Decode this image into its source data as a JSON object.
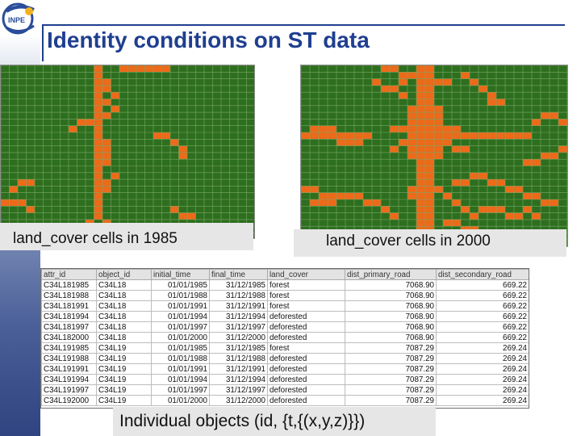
{
  "slide": {
    "title": "Identity conditions on ST data",
    "logo_text": "INPE",
    "caption_1985": "land_cover cells in 1985",
    "caption_2000": "land_cover cells in 2000",
    "caption_objects": "Individual objects (id, {t,{(x,y,z)}})"
  },
  "colors": {
    "forest": "#2e6e1f",
    "deforested": "#ec6a19",
    "title": "#1f3f8f"
  },
  "table": {
    "columns": [
      "attr_id",
      "object_id",
      "initial_time",
      "final_time",
      "land_cover",
      "dist_primary_road",
      "dist_secondary_road"
    ],
    "rows": [
      [
        "C34L181985",
        "C34L18",
        "01/01/1985",
        "31/12/1985",
        "forest",
        "7068.90",
        "669.22"
      ],
      [
        "C34L181988",
        "C34L18",
        "01/01/1988",
        "31/12/1988",
        "forest",
        "7068.90",
        "669.22"
      ],
      [
        "C34L181991",
        "C34L18",
        "01/01/1991",
        "31/12/1991",
        "forest",
        "7068.90",
        "669.22"
      ],
      [
        "C34L181994",
        "C34L18",
        "01/01/1994",
        "31/12/1994",
        "deforested",
        "7068.90",
        "669.22"
      ],
      [
        "C34L181997",
        "C34L18",
        "01/01/1997",
        "31/12/1997",
        "deforested",
        "7068.90",
        "669.22"
      ],
      [
        "C34L182000",
        "C34L18",
        "01/01/2000",
        "31/12/2000",
        "deforested",
        "7068.90",
        "669.22"
      ],
      [
        "C34L191985",
        "C34L19",
        "01/01/1985",
        "31/12/1985",
        "forest",
        "7087.29",
        "269.24"
      ],
      [
        "C34L191988",
        "C34L19",
        "01/01/1988",
        "31/12/1988",
        "deforested",
        "7087.29",
        "269.24"
      ],
      [
        "C34L191991",
        "C34L19",
        "01/01/1991",
        "31/12/1991",
        "deforested",
        "7087.29",
        "269.24"
      ],
      [
        "C34L191994",
        "C34L19",
        "01/01/1994",
        "31/12/1994",
        "deforested",
        "7087.29",
        "269.24"
      ],
      [
        "C34L191997",
        "C34L19",
        "01/01/1997",
        "31/12/1997",
        "deforested",
        "7087.29",
        "269.24"
      ],
      [
        "C34L192000",
        "C34L19",
        "01/01/2000",
        "31/12/2000",
        "deforested",
        "7087.29",
        "269.24"
      ]
    ]
  }
}
